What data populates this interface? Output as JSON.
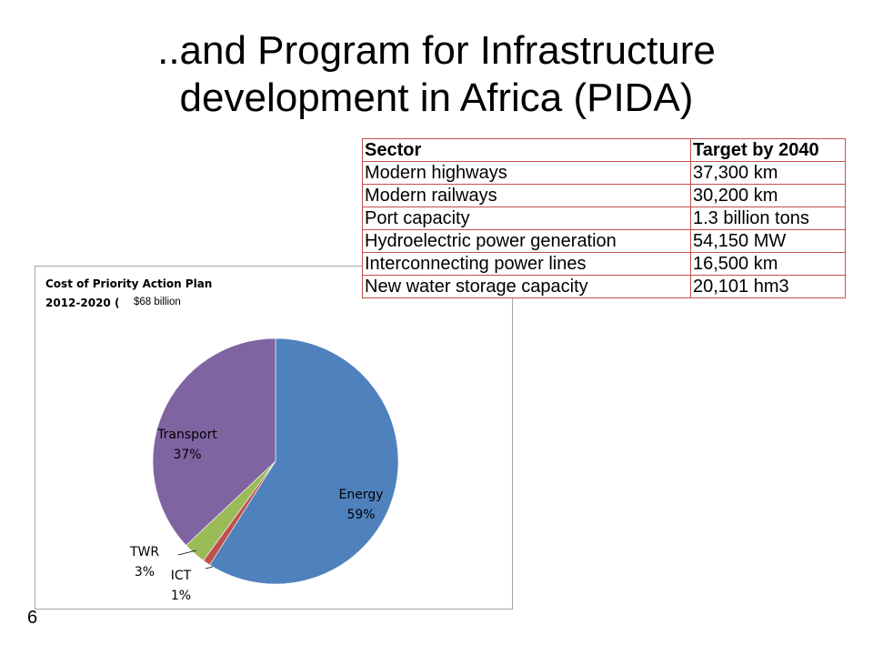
{
  "slide": {
    "title_line1": "..and Program for Infrastructure",
    "title_line2": "development in Africa (PIDA)",
    "page_number": "6"
  },
  "chart_data": {
    "type": "pie",
    "title_line1": "Cost of Priority Action Plan",
    "title_line2": "2012-2020 (",
    "subtitle": "$68 billion",
    "slices": [
      {
        "label": "Energy",
        "pct_label": "59%",
        "value": 59,
        "color": "#4f81bd"
      },
      {
        "label": "ICT",
        "pct_label": "1%",
        "value": 1,
        "color": "#c0504d"
      },
      {
        "label": "TWR",
        "pct_label": "3%",
        "value": 3,
        "color": "#9bbb59"
      },
      {
        "label": "Transport",
        "pct_label": "37%",
        "value": 37,
        "color": "#8064a2"
      }
    ]
  },
  "table": {
    "headers": [
      "Sector",
      "Target by 2040"
    ],
    "rows": [
      [
        "Modern highways",
        "37,300 km"
      ],
      [
        "Modern railways",
        "30,200 km"
      ],
      [
        "Port capacity",
        "1.3 billion tons"
      ],
      [
        "Hydroelectric power generation",
        "54,150 MW"
      ],
      [
        "Interconnecting power lines",
        "16,500 km"
      ],
      [
        "New water storage capacity",
        "20,101 hm3"
      ]
    ]
  }
}
